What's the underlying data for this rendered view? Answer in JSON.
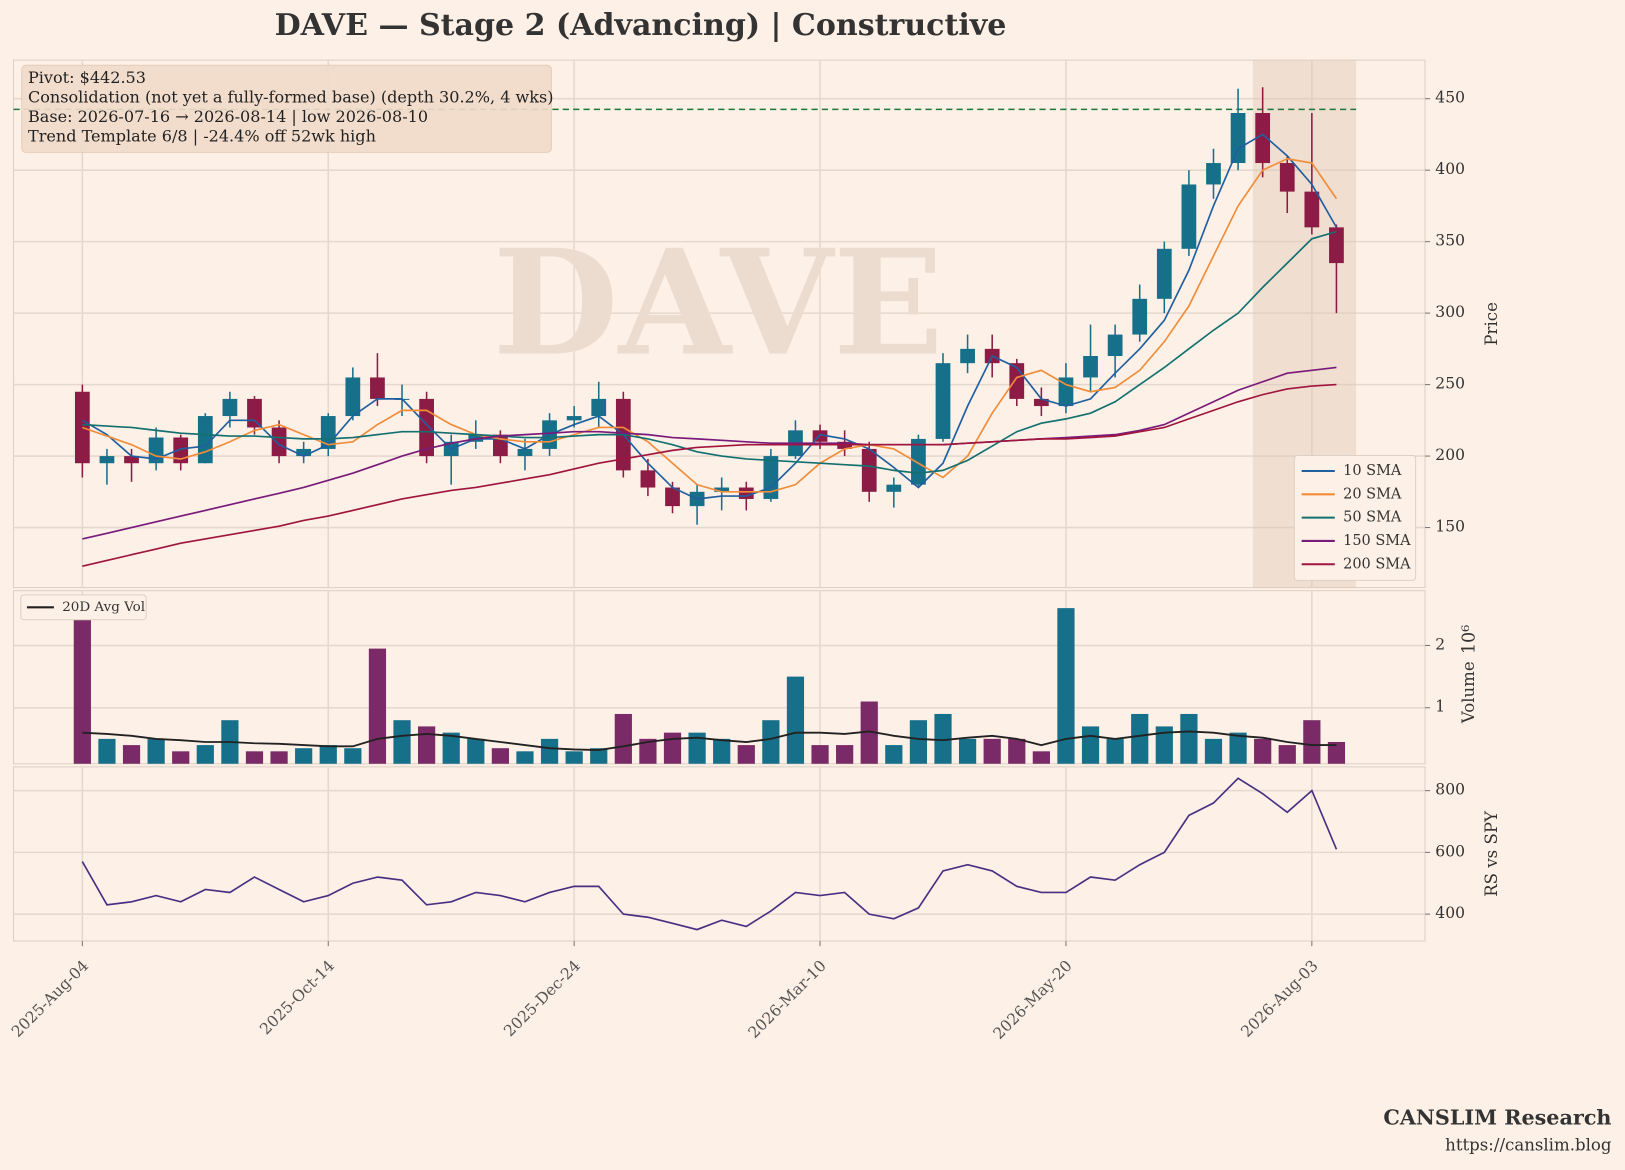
{
  "chart_data": [
    {
      "type": "candlestick",
      "title": "DAVE  —  Stage 2 (Advancing)  |  Constructive",
      "watermark": "DAVE",
      "ylabel": "Price",
      "annotation": [
        "Pivot: $442.53",
        "Consolidation (not yet a fully-formed base)  (depth 30.2%, 4 wks)",
        "Base: 2026-07-16 → 2026-08-14  |  low 2026-08-10",
        "Trend Template 6/8  |  -24.4% off 52wk high"
      ],
      "x": [
        0,
        5,
        10,
        15,
        20,
        25,
        30,
        35,
        40,
        45,
        50,
        55,
        60,
        65,
        70,
        75,
        80,
        85,
        90,
        95,
        100,
        105,
        110,
        115,
        120,
        125,
        130,
        135,
        140,
        145,
        150,
        155,
        160,
        165,
        170,
        175,
        180,
        185,
        190,
        195,
        200,
        205,
        210,
        215,
        220,
        225,
        230,
        235,
        240,
        245,
        250,
        255
      ],
      "open": [
        245,
        195,
        200,
        195,
        213,
        195,
        228,
        240,
        220,
        200,
        205,
        228,
        255,
        240,
        240,
        200,
        210,
        215,
        200,
        205,
        225,
        228,
        240,
        190,
        178,
        165,
        175,
        178,
        170,
        200,
        218,
        210,
        205,
        175,
        180,
        212,
        265,
        275,
        265,
        240,
        235,
        255,
        270,
        285,
        310,
        345,
        390,
        405,
        440,
        405,
        385,
        360
      ],
      "high": [
        250,
        205,
        205,
        220,
        215,
        230,
        245,
        242,
        225,
        210,
        230,
        262,
        272,
        250,
        245,
        215,
        225,
        218,
        212,
        230,
        235,
        252,
        245,
        198,
        182,
        180,
        185,
        182,
        205,
        225,
        222,
        218,
        210,
        185,
        215,
        272,
        285,
        285,
        268,
        248,
        265,
        292,
        292,
        320,
        350,
        400,
        415,
        457,
        458,
        410,
        440,
        362
      ],
      "low": [
        185,
        180,
        182,
        190,
        190,
        195,
        220,
        215,
        195,
        195,
        200,
        225,
        235,
        228,
        195,
        180,
        205,
        195,
        190,
        200,
        220,
        220,
        185,
        172,
        160,
        152,
        162,
        162,
        168,
        198,
        205,
        200,
        168,
        164,
        178,
        210,
        258,
        255,
        235,
        228,
        230,
        245,
        255,
        280,
        300,
        340,
        380,
        400,
        395,
        370,
        355,
        300
      ],
      "close": [
        195,
        200,
        195,
        213,
        195,
        228,
        240,
        220,
        200,
        205,
        228,
        255,
        240,
        240,
        200,
        210,
        215,
        200,
        205,
        225,
        228,
        240,
        190,
        178,
        165,
        175,
        178,
        170,
        200,
        218,
        210,
        205,
        175,
        180,
        212,
        265,
        275,
        265,
        240,
        235,
        255,
        270,
        285,
        310,
        345,
        390,
        405,
        440,
        405,
        385,
        360,
        335
      ],
      "up_color": "#17708a",
      "down_color": "#8c1c45",
      "series": [
        {
          "name": "10 SMA",
          "color": "#1f5fa0",
          "values": [
            225,
            215,
            200,
            198,
            205,
            207,
            225,
            225,
            208,
            200,
            208,
            228,
            240,
            240,
            222,
            205,
            212,
            212,
            205,
            215,
            222,
            228,
            215,
            195,
            178,
            170,
            172,
            172,
            178,
            195,
            215,
            212,
            205,
            192,
            178,
            195,
            235,
            270,
            262,
            240,
            235,
            240,
            258,
            275,
            295,
            330,
            375,
            415,
            425,
            410,
            390,
            360
          ]
        },
        {
          "name": "20 SMA",
          "color": "#f28c38",
          "values": [
            220,
            214,
            208,
            200,
            198,
            203,
            210,
            218,
            222,
            215,
            208,
            210,
            222,
            232,
            232,
            222,
            215,
            212,
            210,
            210,
            215,
            220,
            220,
            210,
            195,
            180,
            175,
            175,
            175,
            180,
            195,
            205,
            208,
            205,
            195,
            185,
            200,
            230,
            255,
            260,
            250,
            245,
            248,
            260,
            280,
            305,
            340,
            375,
            400,
            408,
            405,
            380
          ]
        },
        {
          "name": "50 SMA",
          "color": "#137070",
          "values": [
            222,
            221,
            220,
            218,
            216,
            215,
            214,
            214,
            213,
            212,
            212,
            213,
            215,
            217,
            217,
            216,
            215,
            214,
            213,
            213,
            214,
            215,
            215,
            212,
            208,
            203,
            200,
            198,
            197,
            196,
            195,
            194,
            193,
            190,
            188,
            190,
            197,
            207,
            217,
            223,
            226,
            230,
            238,
            250,
            262,
            275,
            288,
            300,
            318,
            335,
            352,
            357
          ]
        },
        {
          "name": "150 SMA",
          "color": "#7a1a7a",
          "values": [
            142,
            146,
            150,
            154,
            158,
            162,
            166,
            170,
            174,
            178,
            183,
            188,
            194,
            200,
            205,
            209,
            212,
            214,
            215,
            216,
            217,
            217,
            216,
            215,
            213,
            212,
            211,
            210,
            209,
            209,
            209,
            209,
            208,
            208,
            208,
            208,
            209,
            210,
            211,
            212,
            213,
            214,
            215,
            218,
            222,
            230,
            238,
            246,
            252,
            258,
            260,
            262
          ]
        },
        {
          "name": "200 SMA",
          "color": "#a0153e",
          "values": [
            123,
            127,
            131,
            135,
            139,
            142,
            145,
            148,
            151,
            155,
            158,
            162,
            166,
            170,
            173,
            176,
            178,
            181,
            184,
            187,
            191,
            195,
            198,
            201,
            204,
            206,
            207,
            208,
            208,
            208,
            208,
            208,
            208,
            208,
            208,
            208,
            209,
            210,
            211,
            212,
            212,
            213,
            214,
            217,
            220,
            226,
            232,
            238,
            243,
            247,
            249,
            250
          ]
        }
      ],
      "pivot": {
        "value": 442.53,
        "color": "#1a7a3a"
      },
      "base_span": [
        238,
        259
      ],
      "xlim": [
        -14,
        273
      ],
      "ylim": [
        108,
        477
      ],
      "yticks": [
        150,
        200,
        250,
        300,
        350,
        400,
        450
      ],
      "grid": true,
      "legend": "lower right"
    },
    {
      "type": "bar",
      "ylabel": "Volume",
      "offset_label": "10⁶",
      "x": [
        0,
        5,
        10,
        15,
        20,
        25,
        30,
        35,
        40,
        45,
        50,
        55,
        60,
        65,
        70,
        75,
        80,
        85,
        90,
        95,
        100,
        105,
        110,
        115,
        120,
        125,
        130,
        135,
        140,
        145,
        150,
        155,
        160,
        165,
        170,
        175,
        180,
        185,
        190,
        195,
        200,
        205,
        210,
        215,
        220,
        225,
        230,
        235,
        240,
        245,
        250,
        255
      ],
      "values": [
        2.5,
        0.5,
        0.4,
        0.5,
        0.3,
        0.4,
        0.8,
        0.3,
        0.3,
        0.35,
        0.4,
        0.35,
        1.95,
        0.8,
        0.7,
        0.6,
        0.5,
        0.35,
        0.3,
        0.5,
        0.3,
        0.35,
        0.9,
        0.5,
        0.6,
        0.6,
        0.5,
        0.4,
        0.8,
        1.5,
        0.4,
        0.4,
        1.1,
        0.4,
        0.8,
        0.9,
        0.5,
        0.5,
        0.5,
        0.3,
        2.6,
        0.7,
        0.5,
        0.9,
        0.7,
        0.9,
        0.5,
        0.6,
        0.5,
        0.4,
        0.8,
        0.45
      ],
      "up_color": "#17708a",
      "down_color": "#7a2a66",
      "series": [
        {
          "name": "20D Avg Vol",
          "color": "#222222",
          "values": [
            0.6,
            0.58,
            0.55,
            0.5,
            0.48,
            0.45,
            0.45,
            0.43,
            0.42,
            0.4,
            0.38,
            0.38,
            0.5,
            0.55,
            0.58,
            0.55,
            0.5,
            0.45,
            0.4,
            0.35,
            0.33,
            0.32,
            0.38,
            0.45,
            0.5,
            0.52,
            0.48,
            0.45,
            0.5,
            0.6,
            0.6,
            0.58,
            0.62,
            0.55,
            0.5,
            0.48,
            0.52,
            0.55,
            0.5,
            0.4,
            0.5,
            0.55,
            0.5,
            0.55,
            0.6,
            0.62,
            0.6,
            0.55,
            0.52,
            0.45,
            0.4,
            0.4
          ]
        }
      ],
      "xlim": [
        -14,
        273
      ],
      "ylim": [
        0.1,
        2.88
      ],
      "yticks": [
        1,
        2
      ],
      "grid": true,
      "legend": "upper left"
    },
    {
      "type": "line",
      "ylabel": "RS vs SPY",
      "x": [
        0,
        5,
        10,
        15,
        20,
        25,
        30,
        35,
        40,
        45,
        50,
        55,
        60,
        65,
        70,
        75,
        80,
        85,
        90,
        95,
        100,
        105,
        110,
        115,
        120,
        125,
        130,
        135,
        140,
        145,
        150,
        155,
        160,
        165,
        170,
        175,
        180,
        185,
        190,
        195,
        200,
        205,
        210,
        215,
        220,
        225,
        230,
        235,
        240,
        245,
        250,
        255
      ],
      "values": [
        570,
        430,
        440,
        460,
        440,
        480,
        470,
        520,
        480,
        440,
        460,
        500,
        520,
        510,
        430,
        440,
        470,
        460,
        440,
        470,
        490,
        490,
        400,
        390,
        370,
        350,
        380,
        360,
        410,
        470,
        460,
        470,
        400,
        385,
        420,
        540,
        560,
        540,
        490,
        470,
        470,
        520,
        510,
        560,
        600,
        720,
        760,
        840,
        790,
        730,
        800,
        610
      ],
      "color": "#4b2e83",
      "xlim": [
        -14,
        273
      ],
      "ylim": [
        313,
        877
      ],
      "yticks": [
        400,
        600,
        800
      ],
      "xticks": [
        {
          "value": 0,
          "label": "2025-Aug-04"
        },
        {
          "value": 50,
          "label": "2025-Oct-14"
        },
        {
          "value": 100,
          "label": "2025-Dec-24"
        },
        {
          "value": 150,
          "label": "2026-Mar-10"
        },
        {
          "value": 200,
          "label": "2026-May-20"
        },
        {
          "value": 250,
          "label": "2026-Aug-03"
        }
      ],
      "grid": true
    }
  ],
  "footer": {
    "brand": "CANSLIM Research",
    "url": "https://canslim.blog"
  }
}
